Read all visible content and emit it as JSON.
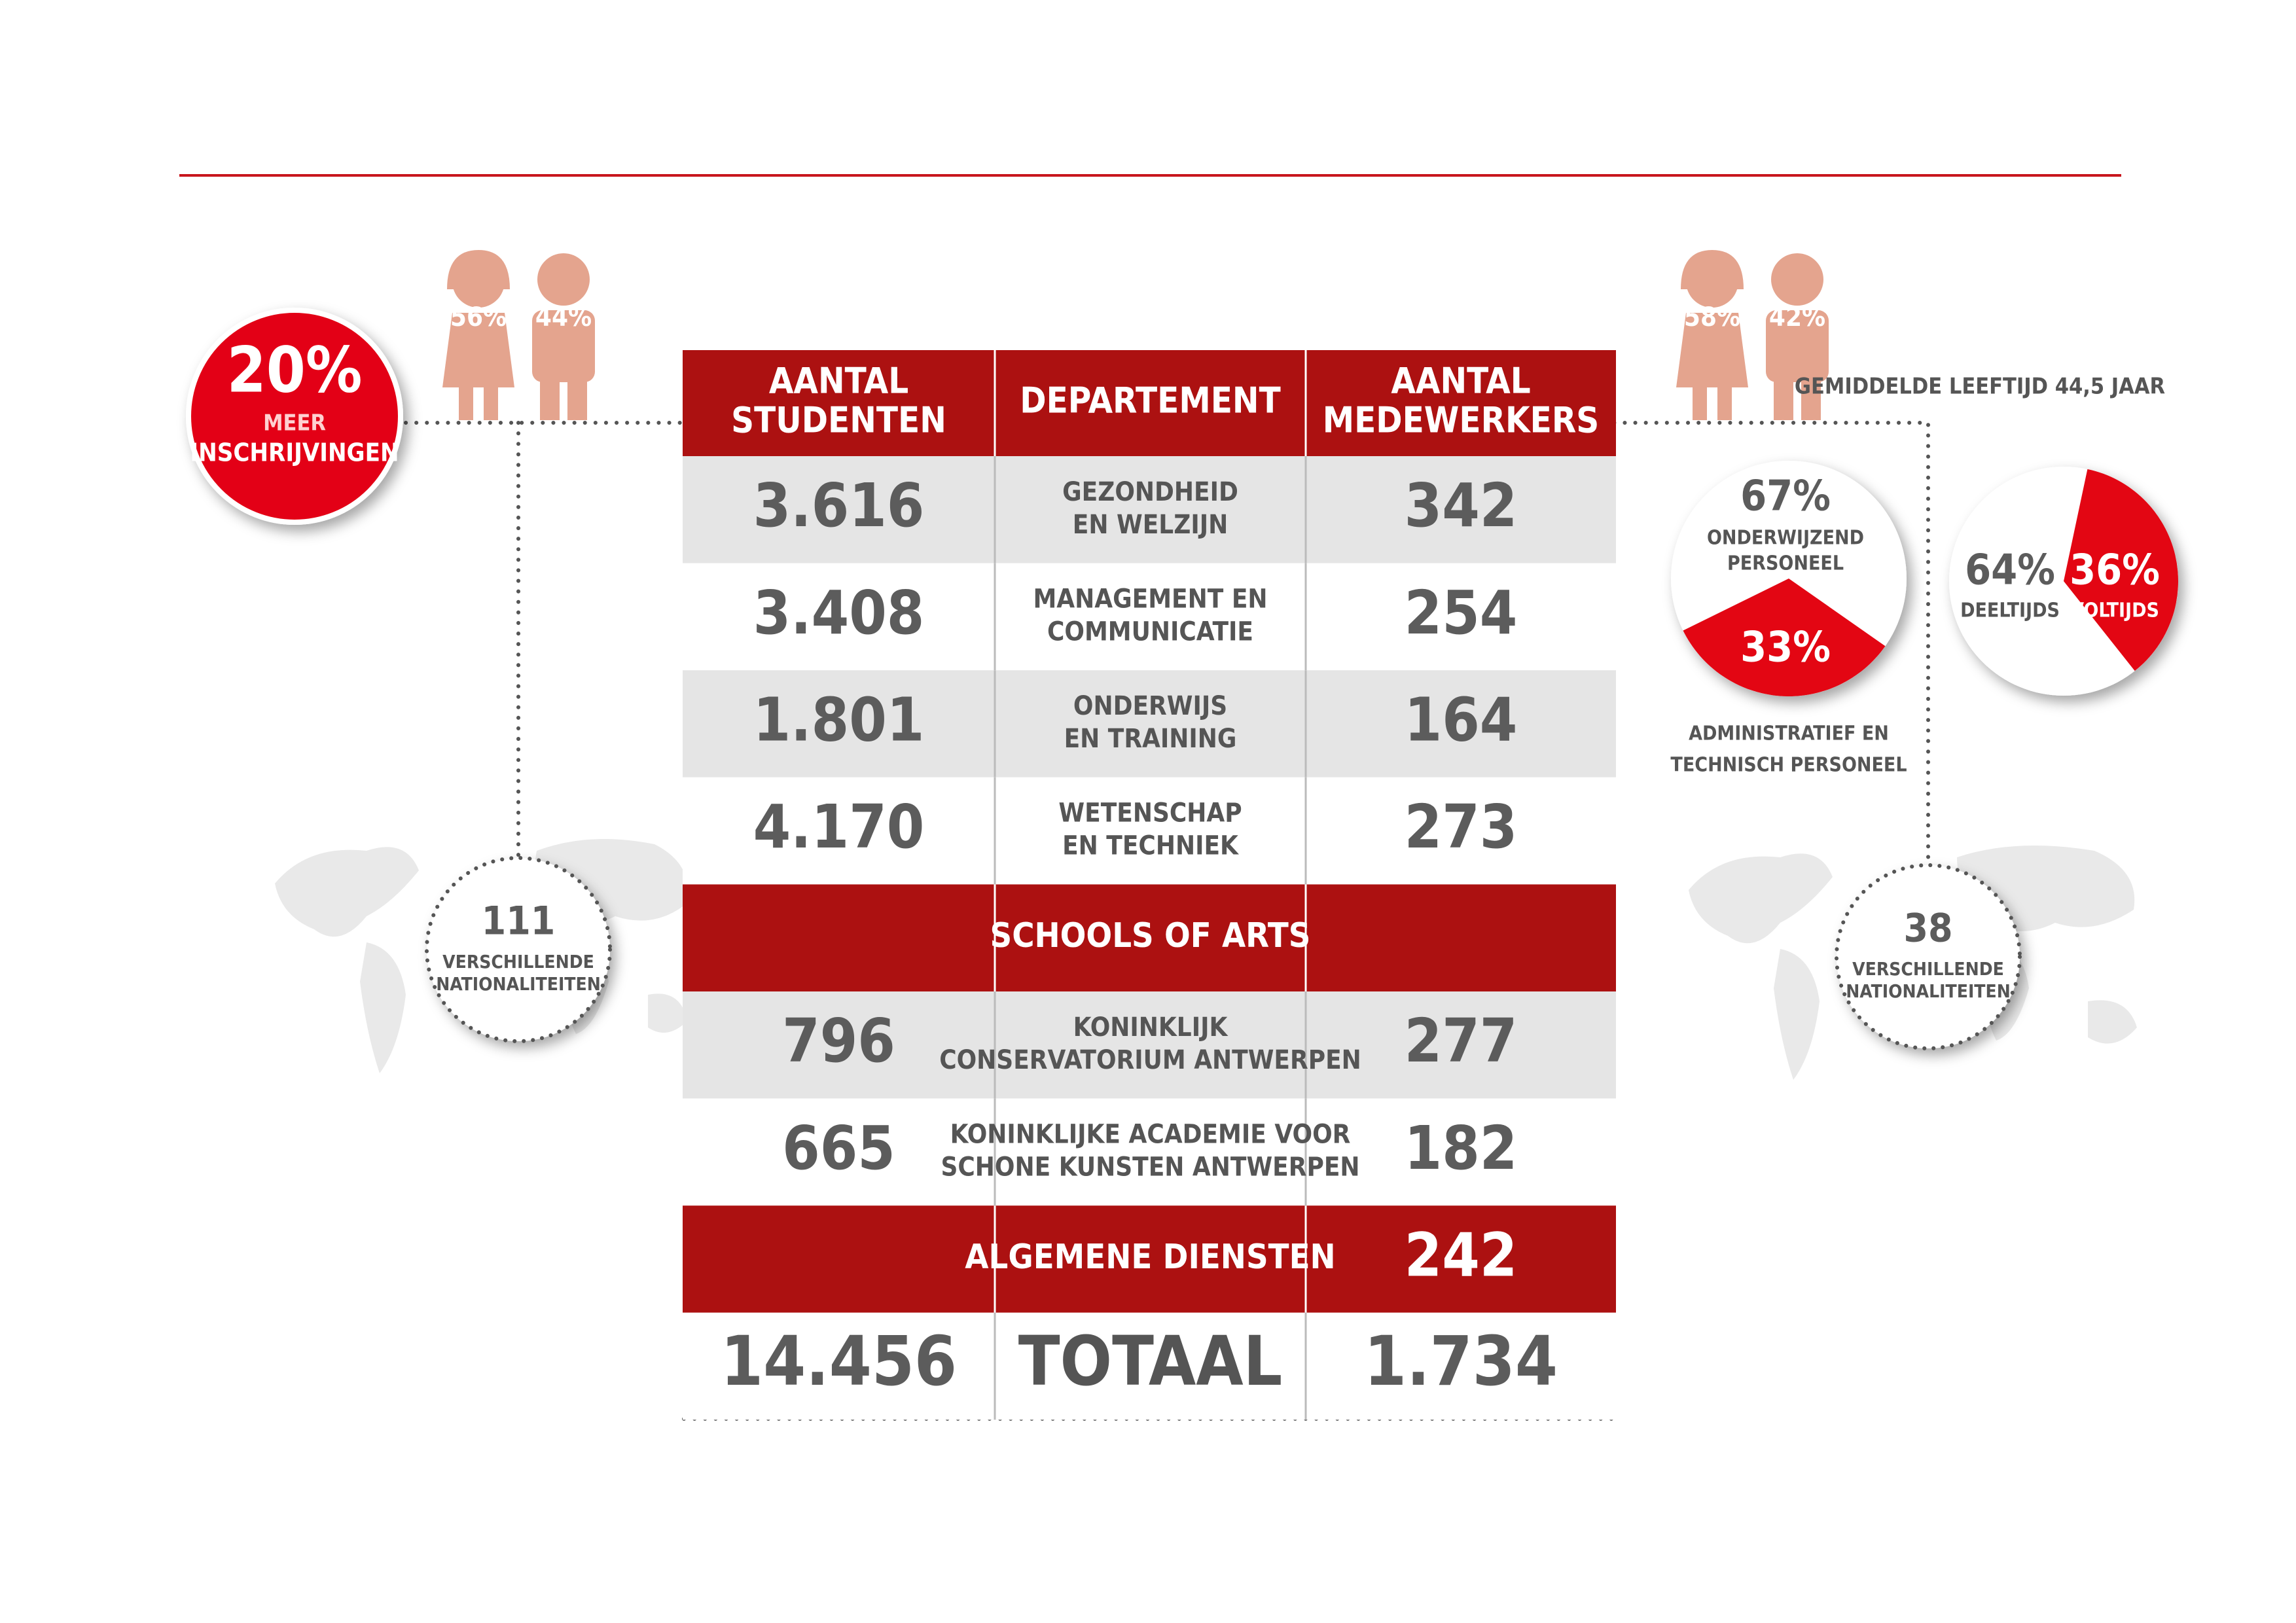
{
  "students": {
    "female": "56%",
    "male": "44%",
    "growth": {
      "value": "20%",
      "line1": "MEER",
      "line2": "INSCHRIJVINGEN"
    },
    "nationalities": {
      "count": "111",
      "lines": [
        "VERSCHILLENDE",
        "NATIONALITEITEN"
      ]
    }
  },
  "staff": {
    "female": "58%",
    "male": "42%",
    "average_age": "GEMIDDELDE LEEFTIJD 44,5 JAAR",
    "role_pie": {
      "slices": [
        {
          "value": 67,
          "label": "67%",
          "caption": [
            "ONDERWIJZEND",
            "PERSONEEL"
          ]
        },
        {
          "value": 33,
          "label": "33%",
          "caption": [
            "ADMINISTRATIEF EN",
            "TECHNISCH PERSONEEL"
          ]
        }
      ]
    },
    "time_pie": {
      "slices": [
        {
          "value": 64,
          "label": "64%",
          "caption": [
            "DEELTIJDS"
          ]
        },
        {
          "value": 36,
          "label": "36%",
          "caption": [
            "VOLTIJDS"
          ]
        }
      ]
    },
    "nationalities": {
      "count": "38",
      "lines": [
        "VERSCHILLENDE",
        "NATIONALITEITEN"
      ]
    }
  },
  "table": {
    "header": [
      [
        "AANTAL",
        "STUDENTEN"
      ],
      [
        "DEPARTEMENT"
      ],
      [
        "AANTAL",
        "MEDEWERKERS"
      ]
    ],
    "rows": [
      {
        "fill": "#e5e5e5",
        "students": "3.616",
        "department": [
          "GEZONDHEID",
          "EN WELZIJN"
        ],
        "staff": "342"
      },
      {
        "fill": "#ffffff",
        "students": "3.408",
        "department": [
          "MANAGEMENT EN",
          "COMMUNICATIE"
        ],
        "staff": "254"
      },
      {
        "fill": "#e5e5e5",
        "students": "1.801",
        "department": [
          "ONDERWIJS",
          "EN TRAINING"
        ],
        "staff": "164"
      },
      {
        "fill": "#ffffff",
        "students": "4.170",
        "department": [
          "WETENSCHAP",
          "EN TECHNIEK"
        ],
        "staff": "273"
      },
      {
        "fill": "#ac1111",
        "students": null,
        "department": [
          "SCHOOLS OF ARTS"
        ],
        "staff": null
      },
      {
        "fill": "#e5e5e5",
        "students": "796",
        "department": [
          "KONINKLIJK",
          "CONSERVATORIUM ANTWERPEN"
        ],
        "staff": "277"
      },
      {
        "fill": "#ffffff",
        "students": "665",
        "department": [
          "KONINKLIJKE ACADEMIE VOOR",
          "SCHONE KUNSTEN ANTWERPEN"
        ],
        "staff": "182"
      },
      {
        "fill": "#ac1111",
        "students": null,
        "department": [
          "ALGEMENE DIENSTEN"
        ],
        "staff": "242"
      },
      {
        "fill": "#ffffff",
        "students": "14.456",
        "department": [
          "TOTAAL"
        ],
        "staff": "1.734"
      }
    ]
  }
}
